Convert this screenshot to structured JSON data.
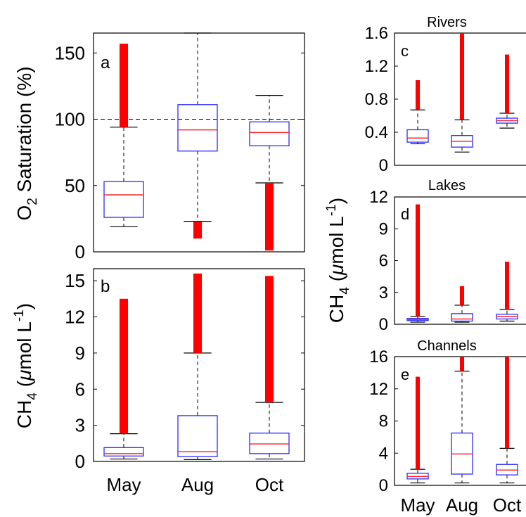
{
  "chart_data": [
    {
      "panel": "a",
      "type": "box",
      "ylabel_main": "O",
      "ylabel_sub": "2",
      "ylabel_rest": " Saturation (%)",
      "ylim": [
        0,
        165
      ],
      "yticks": [
        0,
        50,
        100,
        150
      ],
      "categories": [
        "May",
        "Aug",
        "Oct"
      ],
      "reference_line": 100,
      "boxes": [
        {
          "category": "May",
          "whisker_low": 19,
          "q1": 26,
          "median": 43,
          "q3": 53,
          "whisker_high": 94,
          "outliers_from": 94,
          "outliers_to": 157
        },
        {
          "category": "Aug",
          "whisker_low": 23,
          "q1": 76,
          "median": 92,
          "q3": 111,
          "whisker_high": 165,
          "outliers_from": 10,
          "outliers_to": 23
        },
        {
          "category": "Oct",
          "whisker_low": 52,
          "q1": 80,
          "median": 90,
          "q3": 98,
          "whisker_high": 118,
          "outliers_from": 1,
          "outliers_to": 52
        }
      ]
    },
    {
      "panel": "b",
      "type": "box",
      "ylabel_main": "CH",
      "ylabel_sub": "4",
      "ylabel_rest": " (",
      "ylabel_mu": "μ",
      "ylabel_unit": "mol L",
      "ylabel_sup": "-1",
      "ylabel_close": ")",
      "ylim": [
        0,
        16
      ],
      "yticks": [
        0,
        3,
        6,
        9,
        12,
        15
      ],
      "categories": [
        "May",
        "Aug",
        "Oct"
      ],
      "boxes": [
        {
          "category": "May",
          "whisker_low": 0.2,
          "q1": 0.45,
          "median": 0.65,
          "q3": 1.15,
          "whisker_high": 2.3,
          "outliers_from": 2.3,
          "outliers_to": 13.5
        },
        {
          "category": "Aug",
          "whisker_low": 0.15,
          "q1": 0.4,
          "median": 0.8,
          "q3": 3.8,
          "whisker_high": 9.0,
          "outliers_from": 9.0,
          "outliers_to": 15.6
        },
        {
          "category": "Oct",
          "whisker_low": 0.2,
          "q1": 0.65,
          "median": 1.45,
          "q3": 2.35,
          "whisker_high": 4.9,
          "outliers_from": 4.9,
          "outliers_to": 15.4
        }
      ]
    },
    {
      "panel": "c",
      "title": "Rivers",
      "type": "box",
      "ylim": [
        0,
        1.6
      ],
      "yticks": [
        "0",
        "0.4",
        "0.8",
        "1.2",
        "1.6"
      ],
      "ytick_values": [
        0,
        0.4,
        0.8,
        1.2,
        1.6
      ],
      "categories": [
        "May",
        "Aug",
        "Oct"
      ],
      "boxes": [
        {
          "category": "May",
          "whisker_low": 0.26,
          "q1": 0.28,
          "median": 0.33,
          "q3": 0.43,
          "whisker_high": 0.67,
          "outliers_from": 0.67,
          "outliers_to": 1.03
        },
        {
          "category": "Aug",
          "whisker_low": 0.16,
          "q1": 0.22,
          "median": 0.29,
          "q3": 0.36,
          "whisker_high": 0.55,
          "outliers_from": 0.55,
          "outliers_to": 1.6
        },
        {
          "category": "Oct",
          "whisker_low": 0.45,
          "q1": 0.51,
          "median": 0.54,
          "q3": 0.57,
          "whisker_high": 0.63,
          "outliers_from": 0.63,
          "outliers_to": 1.34
        }
      ]
    },
    {
      "panel": "d",
      "title": "Lakes",
      "type": "box",
      "ylim": [
        0,
        12
      ],
      "yticks": [
        "0",
        "3",
        "6",
        "9",
        "12"
      ],
      "ytick_values": [
        0,
        3,
        6,
        9,
        12
      ],
      "categories": [
        "May",
        "Aug",
        "Oct"
      ],
      "boxes": [
        {
          "category": "May",
          "whisker_low": 0.2,
          "q1": 0.35,
          "median": 0.45,
          "q3": 0.55,
          "whisker_high": 0.75,
          "outliers_from": 0.75,
          "outliers_to": 11.3
        },
        {
          "category": "Aug",
          "whisker_low": 0.2,
          "q1": 0.3,
          "median": 0.5,
          "q3": 1.0,
          "whisker_high": 1.8,
          "outliers_from": 1.8,
          "outliers_to": 3.6
        },
        {
          "category": "Oct",
          "whisker_low": 0.3,
          "q1": 0.5,
          "median": 0.75,
          "q3": 0.95,
          "whisker_high": 1.4,
          "outliers_from": 1.4,
          "outliers_to": 5.9
        }
      ]
    },
    {
      "panel": "e",
      "title": "Channels",
      "type": "box",
      "ylim": [
        0,
        16
      ],
      "yticks": [
        "0",
        "4",
        "8",
        "12",
        "16"
      ],
      "ytick_values": [
        0,
        4,
        8,
        12,
        16
      ],
      "categories": [
        "May",
        "Aug",
        "Oct"
      ],
      "boxes": [
        {
          "category": "May",
          "whisker_low": 0.3,
          "q1": 0.8,
          "median": 1.1,
          "q3": 1.5,
          "whisker_high": 2.0,
          "outliers_from": 2.0,
          "outliers_to": 13.5
        },
        {
          "category": "Aug",
          "whisker_low": 0.3,
          "q1": 1.4,
          "median": 3.9,
          "q3": 6.5,
          "whisker_high": 14.2,
          "outliers_from": 14.2,
          "outliers_to": 16
        },
        {
          "category": "Oct",
          "whisker_low": 0.3,
          "q1": 1.3,
          "median": 1.9,
          "q3": 2.6,
          "whisker_high": 4.6,
          "outliers_from": 4.6,
          "outliers_to": 16
        }
      ]
    }
  ],
  "right_ylabel_main": "CH",
  "right_ylabel_sub": "4",
  "right_ylabel_rest": " (",
  "right_ylabel_mu": "μ",
  "right_ylabel_unit": "mol L",
  "right_ylabel_sup": "-1",
  "right_ylabel_close": ")",
  "colors": {
    "box": "#2b2bff",
    "median": "#ff2a2a",
    "outlier": "#ff0000",
    "whisker": "#000000"
  }
}
